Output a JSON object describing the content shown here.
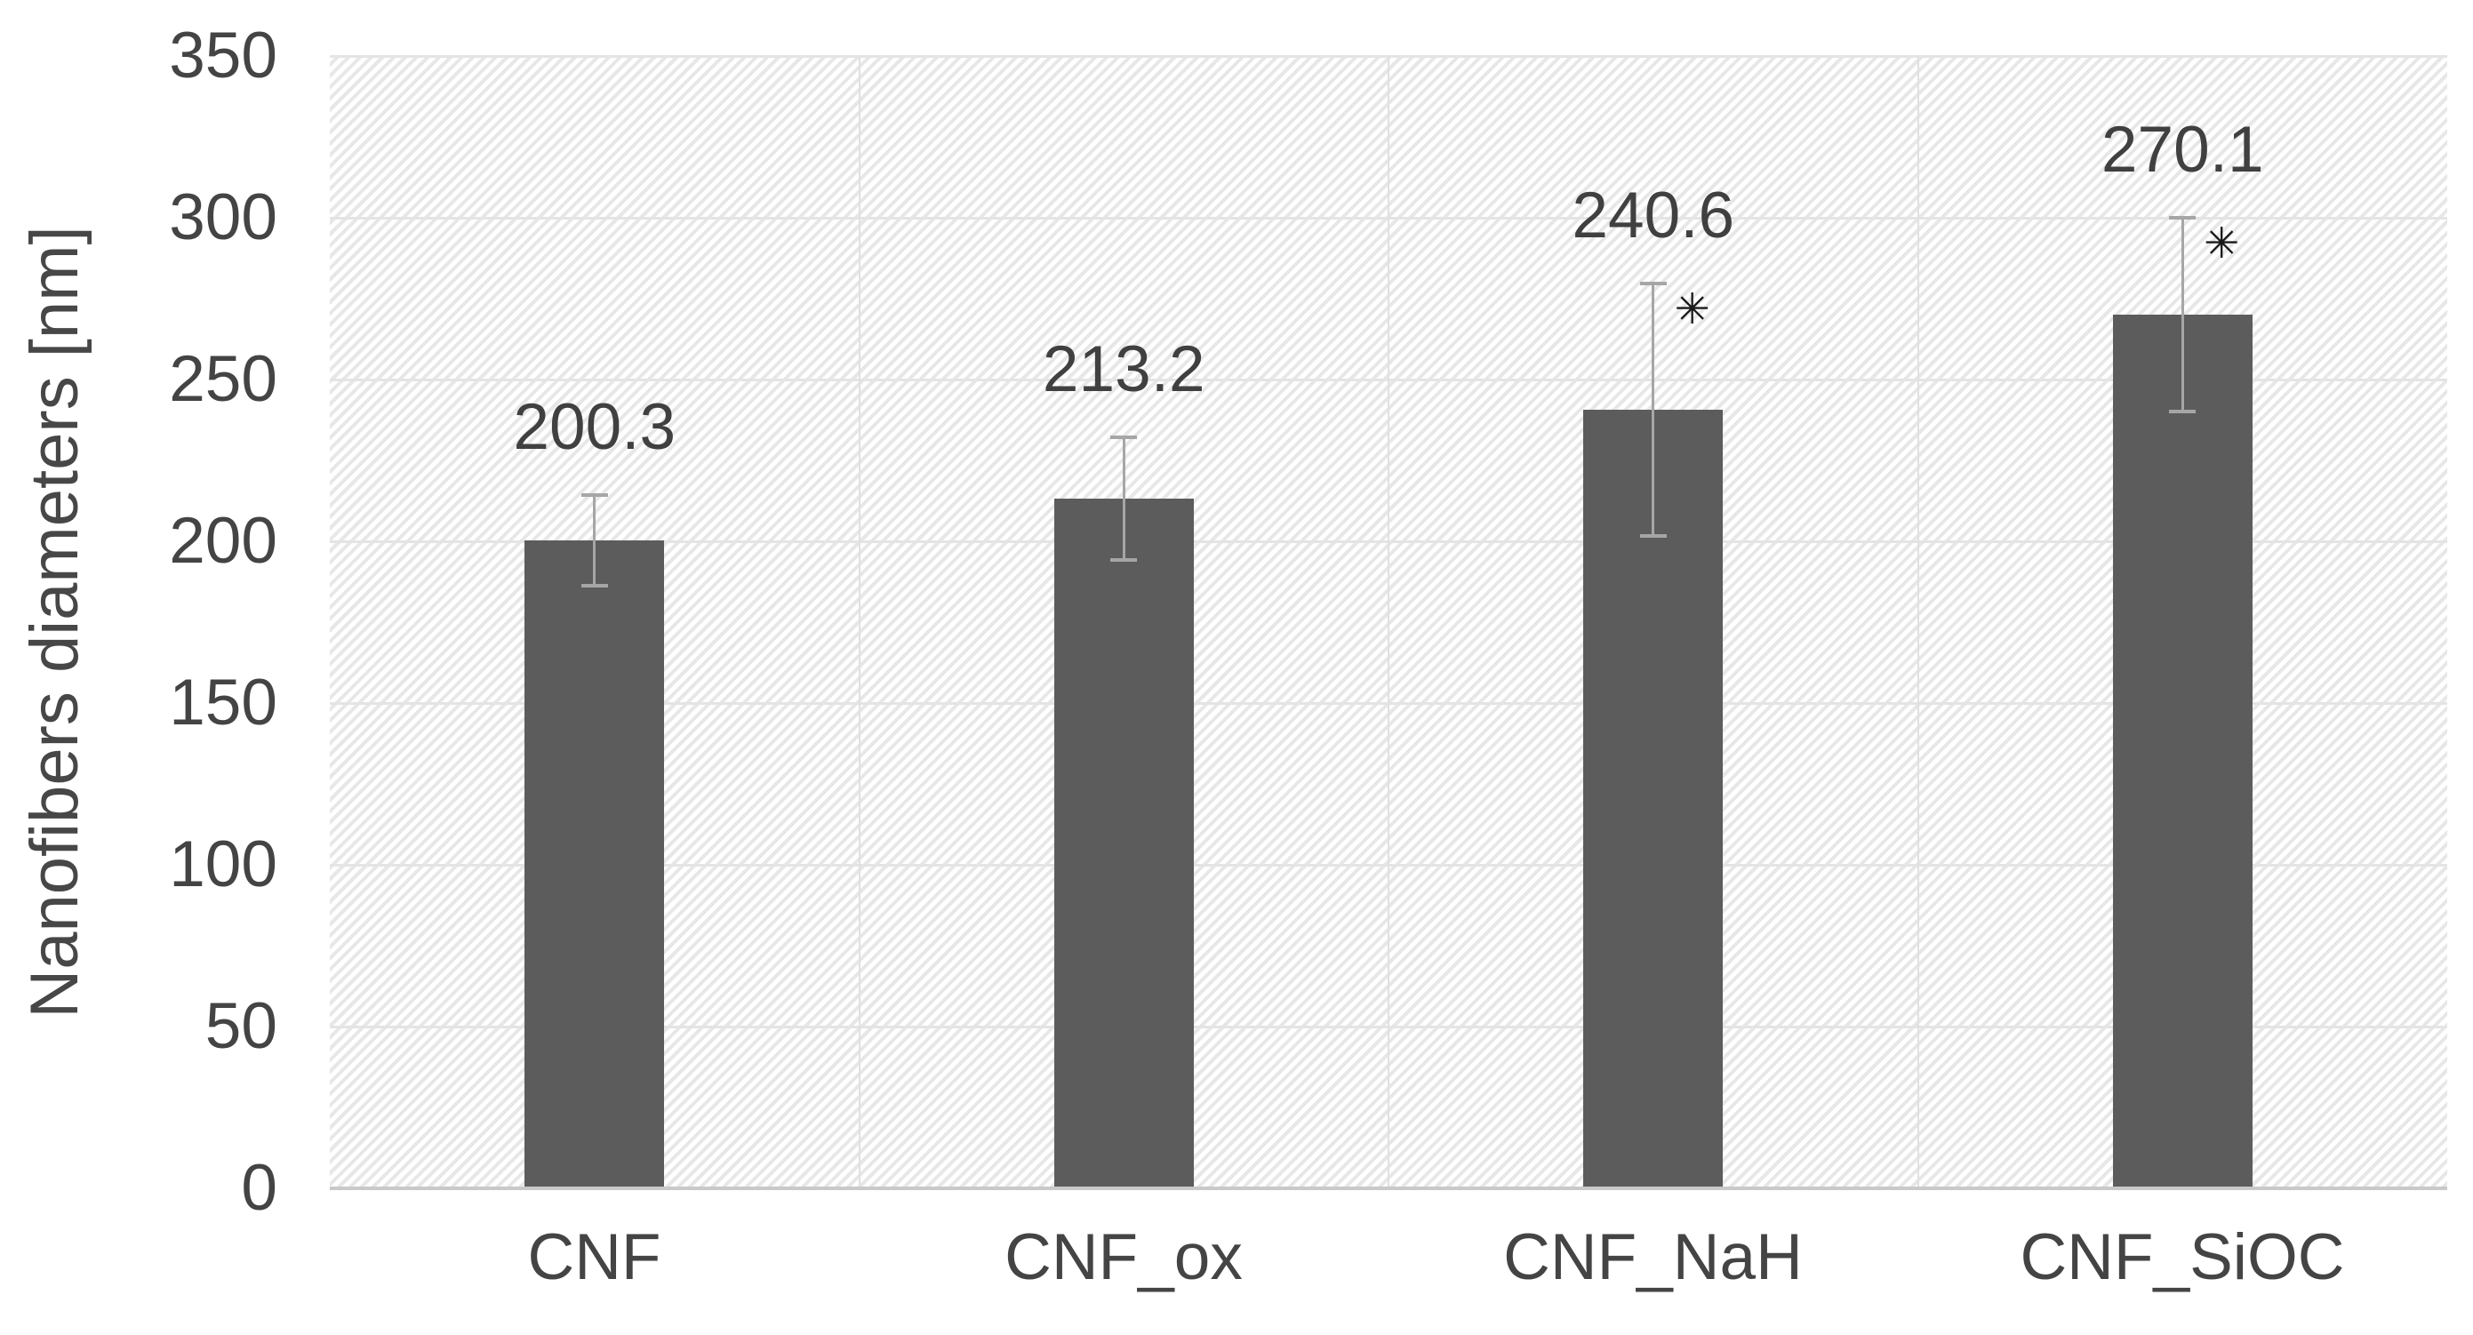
{
  "chart_data": {
    "type": "bar",
    "title": "",
    "categories": [
      "CNF",
      "CNF_ox",
      "CNF_NaH",
      "CNF_SiOC"
    ],
    "values": [
      200.3,
      213.2,
      240.6,
      270.1
    ],
    "data_labels": [
      "200.3",
      "213.2",
      "240.6",
      "270.1"
    ],
    "error_bars": [
      {
        "plus": 14,
        "minus": 14
      },
      {
        "plus": 19,
        "minus": 19
      },
      {
        "plus": 39,
        "minus": 39
      },
      {
        "plus": 30,
        "minus": 30
      }
    ],
    "significance_markers": [
      "",
      "",
      "✳",
      "✳"
    ],
    "xlabel": "",
    "ylabel": "Nanofibers diameters [nm]",
    "ylim": [
      0,
      350
    ],
    "yticks": [
      0,
      50,
      100,
      150,
      200,
      250,
      300,
      350
    ],
    "grid": {
      "horizontal": true,
      "vertical_category_separators": true
    },
    "legend_position": "none",
    "plot_background": "diagonal-hatch",
    "colors": {
      "bar_fill": "#5c5c5c",
      "error_bar": "#a6a6a6",
      "gridline": "#e3e3e3",
      "axis_line": "#c9c9c9",
      "hatch_line": "#e7e7e7",
      "text": "#404040",
      "significance": "#1a1a1a",
      "background": "#ffffff"
    }
  }
}
